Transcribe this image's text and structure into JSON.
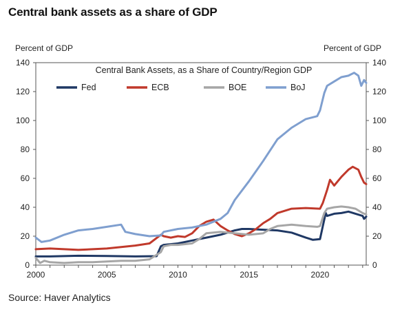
{
  "page": {
    "title": "Central bank assets as a share of GDP",
    "source": "Source: Haver Analytics"
  },
  "chart_data": {
    "type": "line",
    "title": "Central Bank Assets, as a Share of Country/Region GDP",
    "unit_left": "Percent of GDP",
    "unit_right": "Percent of GDP",
    "xlabel": "",
    "ylabel": "Percent of GDP",
    "xlim": [
      2000,
      2023.25
    ],
    "ylim": [
      0,
      140
    ],
    "x_ticks": [
      2000,
      2005,
      2010,
      2015,
      2020
    ],
    "y_ticks": [
      0,
      20,
      40,
      60,
      80,
      100,
      120,
      140
    ],
    "grid": false,
    "legend_position": "top",
    "series": [
      {
        "name": "Fed",
        "color": "#1f3864",
        "points": [
          [
            2000,
            6
          ],
          [
            2001,
            6
          ],
          [
            2003,
            6.5
          ],
          [
            2005,
            6.3
          ],
          [
            2007,
            6
          ],
          [
            2008.5,
            6.2
          ],
          [
            2008.8,
            13
          ],
          [
            2009,
            14
          ],
          [
            2010,
            15
          ],
          [
            2011,
            17
          ],
          [
            2011.5,
            18
          ],
          [
            2012,
            19
          ],
          [
            2013,
            21
          ],
          [
            2014,
            24
          ],
          [
            2014.5,
            25
          ],
          [
            2015,
            25
          ],
          [
            2016,
            24.5
          ],
          [
            2017,
            24
          ],
          [
            2018,
            22.5
          ],
          [
            2019,
            19
          ],
          [
            2019.5,
            17.5
          ],
          [
            2020,
            18
          ],
          [
            2020.2,
            27
          ],
          [
            2020.4,
            36
          ],
          [
            2020.5,
            34
          ],
          [
            2021,
            35.5
          ],
          [
            2021.5,
            36
          ],
          [
            2022,
            37
          ],
          [
            2022.5,
            35.5
          ],
          [
            2023,
            34
          ],
          [
            2023.1,
            32
          ],
          [
            2023.25,
            33.5
          ]
        ]
      },
      {
        "name": "ECB",
        "color": "#c0392b",
        "points": [
          [
            2000,
            11
          ],
          [
            2001,
            11.5
          ],
          [
            2002,
            11
          ],
          [
            2003,
            10.5
          ],
          [
            2004,
            11
          ],
          [
            2005,
            11.5
          ],
          [
            2006,
            12.5
          ],
          [
            2007,
            13.5
          ],
          [
            2008,
            15
          ],
          [
            2008.8,
            21
          ],
          [
            2009,
            20
          ],
          [
            2009.5,
            19
          ],
          [
            2010,
            20
          ],
          [
            2010.5,
            19.5
          ],
          [
            2011,
            22
          ],
          [
            2011.5,
            27
          ],
          [
            2012,
            30
          ],
          [
            2012.5,
            31.5
          ],
          [
            2013,
            27
          ],
          [
            2013.5,
            24
          ],
          [
            2014,
            21.5
          ],
          [
            2014.5,
            20
          ],
          [
            2015,
            22
          ],
          [
            2015.5,
            25
          ],
          [
            2016,
            29
          ],
          [
            2016.5,
            32
          ],
          [
            2017,
            36
          ],
          [
            2018,
            39
          ],
          [
            2019,
            39.5
          ],
          [
            2020,
            39
          ],
          [
            2020.2,
            43
          ],
          [
            2020.5,
            52
          ],
          [
            2020.7,
            59
          ],
          [
            2021,
            55
          ],
          [
            2021.5,
            61
          ],
          [
            2022,
            66
          ],
          [
            2022.3,
            68
          ],
          [
            2022.7,
            66
          ],
          [
            2022.9,
            61
          ],
          [
            2023.1,
            57
          ],
          [
            2023.25,
            56
          ]
        ]
      },
      {
        "name": "BOE",
        "color": "#a6a6a6",
        "points": [
          [
            2000,
            5
          ],
          [
            2000.3,
            1.5
          ],
          [
            2000.6,
            3
          ],
          [
            2001,
            2
          ],
          [
            2002,
            1.5
          ],
          [
            2003,
            2
          ],
          [
            2004,
            2
          ],
          [
            2005,
            2.5
          ],
          [
            2006,
            3
          ],
          [
            2007,
            3
          ],
          [
            2008,
            4
          ],
          [
            2008.8,
            9
          ],
          [
            2009,
            13
          ],
          [
            2009.5,
            14
          ],
          [
            2010,
            14
          ],
          [
            2011,
            15
          ],
          [
            2011.5,
            18
          ],
          [
            2012,
            22
          ],
          [
            2013,
            23
          ],
          [
            2014,
            22
          ],
          [
            2015,
            21
          ],
          [
            2016,
            22
          ],
          [
            2016.5,
            25
          ],
          [
            2017,
            27
          ],
          [
            2018,
            28
          ],
          [
            2019,
            27
          ],
          [
            2019.8,
            26.5
          ],
          [
            2020,
            27
          ],
          [
            2020.3,
            36
          ],
          [
            2020.5,
            39
          ],
          [
            2021,
            40
          ],
          [
            2021.5,
            40.5
          ],
          [
            2022,
            40
          ],
          [
            2022.5,
            39
          ],
          [
            2023,
            36
          ],
          [
            2023.25,
            35
          ]
        ]
      },
      {
        "name": "BoJ",
        "color": "#7f9fcf",
        "points": [
          [
            2000,
            19
          ],
          [
            2000.4,
            16
          ],
          [
            2001,
            17
          ],
          [
            2002,
            21
          ],
          [
            2003,
            24
          ],
          [
            2004,
            25
          ],
          [
            2005,
            26.5
          ],
          [
            2006,
            28
          ],
          [
            2006.3,
            23
          ],
          [
            2007,
            21.5
          ],
          [
            2008,
            20
          ],
          [
            2008.8,
            20.5
          ],
          [
            2009,
            23
          ],
          [
            2010,
            25
          ],
          [
            2011,
            26
          ],
          [
            2012,
            28
          ],
          [
            2013,
            32
          ],
          [
            2013.5,
            36
          ],
          [
            2014,
            45
          ],
          [
            2015,
            58
          ],
          [
            2016,
            72
          ],
          [
            2017,
            87
          ],
          [
            2018,
            95
          ],
          [
            2019,
            101
          ],
          [
            2019.8,
            103
          ],
          [
            2020,
            107
          ],
          [
            2020.3,
            119
          ],
          [
            2020.5,
            124
          ],
          [
            2021,
            127
          ],
          [
            2021.5,
            130
          ],
          [
            2022,
            131
          ],
          [
            2022.4,
            133
          ],
          [
            2022.7,
            131
          ],
          [
            2022.9,
            124
          ],
          [
            2023.1,
            128
          ],
          [
            2023.25,
            126
          ]
        ]
      }
    ]
  }
}
